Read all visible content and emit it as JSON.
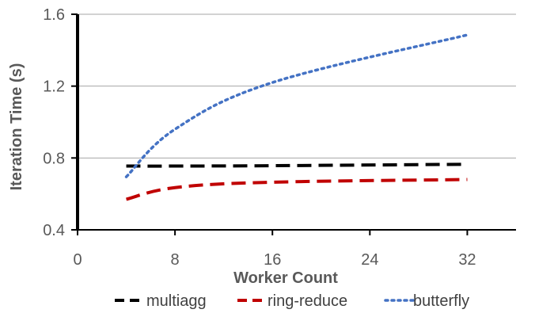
{
  "chart_data": {
    "type": "line",
    "title": "",
    "xlabel": "Worker Count",
    "ylabel": "Iteration Time (s)",
    "xlim": [
      0,
      36
    ],
    "ylim": [
      0.4,
      1.6
    ],
    "x_ticks": [
      0,
      8,
      16,
      24,
      32
    ],
    "y_ticks": [
      0.4,
      0.8,
      1.2,
      1.6
    ],
    "x_tick_labels": [
      "0",
      "8",
      "16",
      "24",
      "32"
    ],
    "y_tick_labels": [
      "0.4",
      "0.8",
      "1.2",
      "1.6"
    ],
    "grid": "horizontal",
    "legend_position": "bottom",
    "series": [
      {
        "name": "multiagg",
        "color": "#000000",
        "dash": "dashed",
        "x": [
          4,
          8,
          16,
          32
        ],
        "y": [
          0.755,
          0.755,
          0.757,
          0.765
        ]
      },
      {
        "name": "ring-reduce",
        "color": "#C00000",
        "dash": "dashed",
        "x": [
          4,
          8,
          16,
          32
        ],
        "y": [
          0.57,
          0.635,
          0.665,
          0.68
        ]
      },
      {
        "name": "butterfly",
        "color": "#4472C4",
        "dash": "dotted",
        "x": [
          4,
          8,
          16,
          32
        ],
        "y": [
          0.695,
          0.96,
          1.22,
          1.485
        ]
      }
    ]
  }
}
